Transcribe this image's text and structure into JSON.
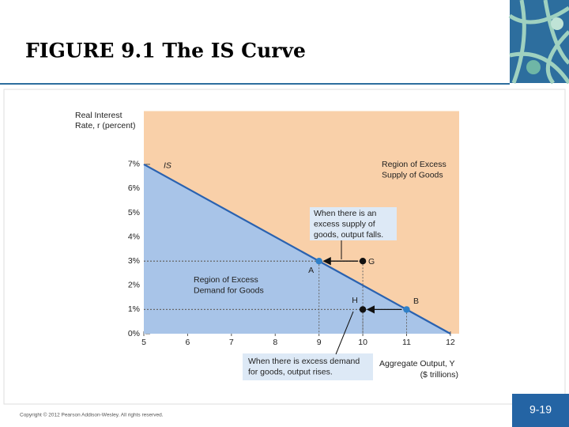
{
  "slide_title": "FIGURE 9.1  The IS Curve",
  "copyright": "Copyright © 2012 Pearson Addison-Wesley. All rights reserved.",
  "page_number": "9-19",
  "chart_data": {
    "type": "line",
    "background": "#f9d0a9",
    "x_label": [
      "Aggregate Output, Y",
      "($ trillions)"
    ],
    "y_label": [
      "Real Interest",
      "Rate, r (percent)"
    ],
    "xlim": [
      5,
      12.2
    ],
    "ylim": [
      0,
      9.2
    ],
    "xticks": [
      5,
      6,
      7,
      8,
      9,
      10,
      11,
      12
    ],
    "yticks": [
      {
        "value": 0,
        "label": "0%"
      },
      {
        "value": 1,
        "label": "1%"
      },
      {
        "value": 2,
        "label": "2%"
      },
      {
        "value": 3,
        "label": "3%"
      },
      {
        "value": 4,
        "label": "4%"
      },
      {
        "value": 5,
        "label": "5%"
      },
      {
        "value": 6,
        "label": "6%"
      },
      {
        "value": 7,
        "label": "7%"
      }
    ],
    "series": [
      {
        "name": "IS",
        "color": "#2a62b0",
        "fill": "#a8c4e8",
        "x": [
          5,
          12
        ],
        "values": [
          7,
          0
        ]
      }
    ],
    "points": {
      "labels": [
        "A",
        "G",
        "H",
        "B"
      ],
      "x": [
        9,
        10,
        10,
        11
      ],
      "values": [
        3,
        3,
        1,
        1
      ],
      "colors": [
        "#2f80c8",
        "#111111",
        "#111111",
        "#2f80c8"
      ]
    },
    "annotations": [
      [
        "Region of Excess",
        "Supply of Goods"
      ],
      [
        "Region of Excess",
        "Demand for Goods"
      ],
      [
        "When there is an",
        "excess supply of",
        "goods, output falls."
      ],
      [
        "When there is excess demand",
        "for goods, output rises."
      ]
    ]
  }
}
